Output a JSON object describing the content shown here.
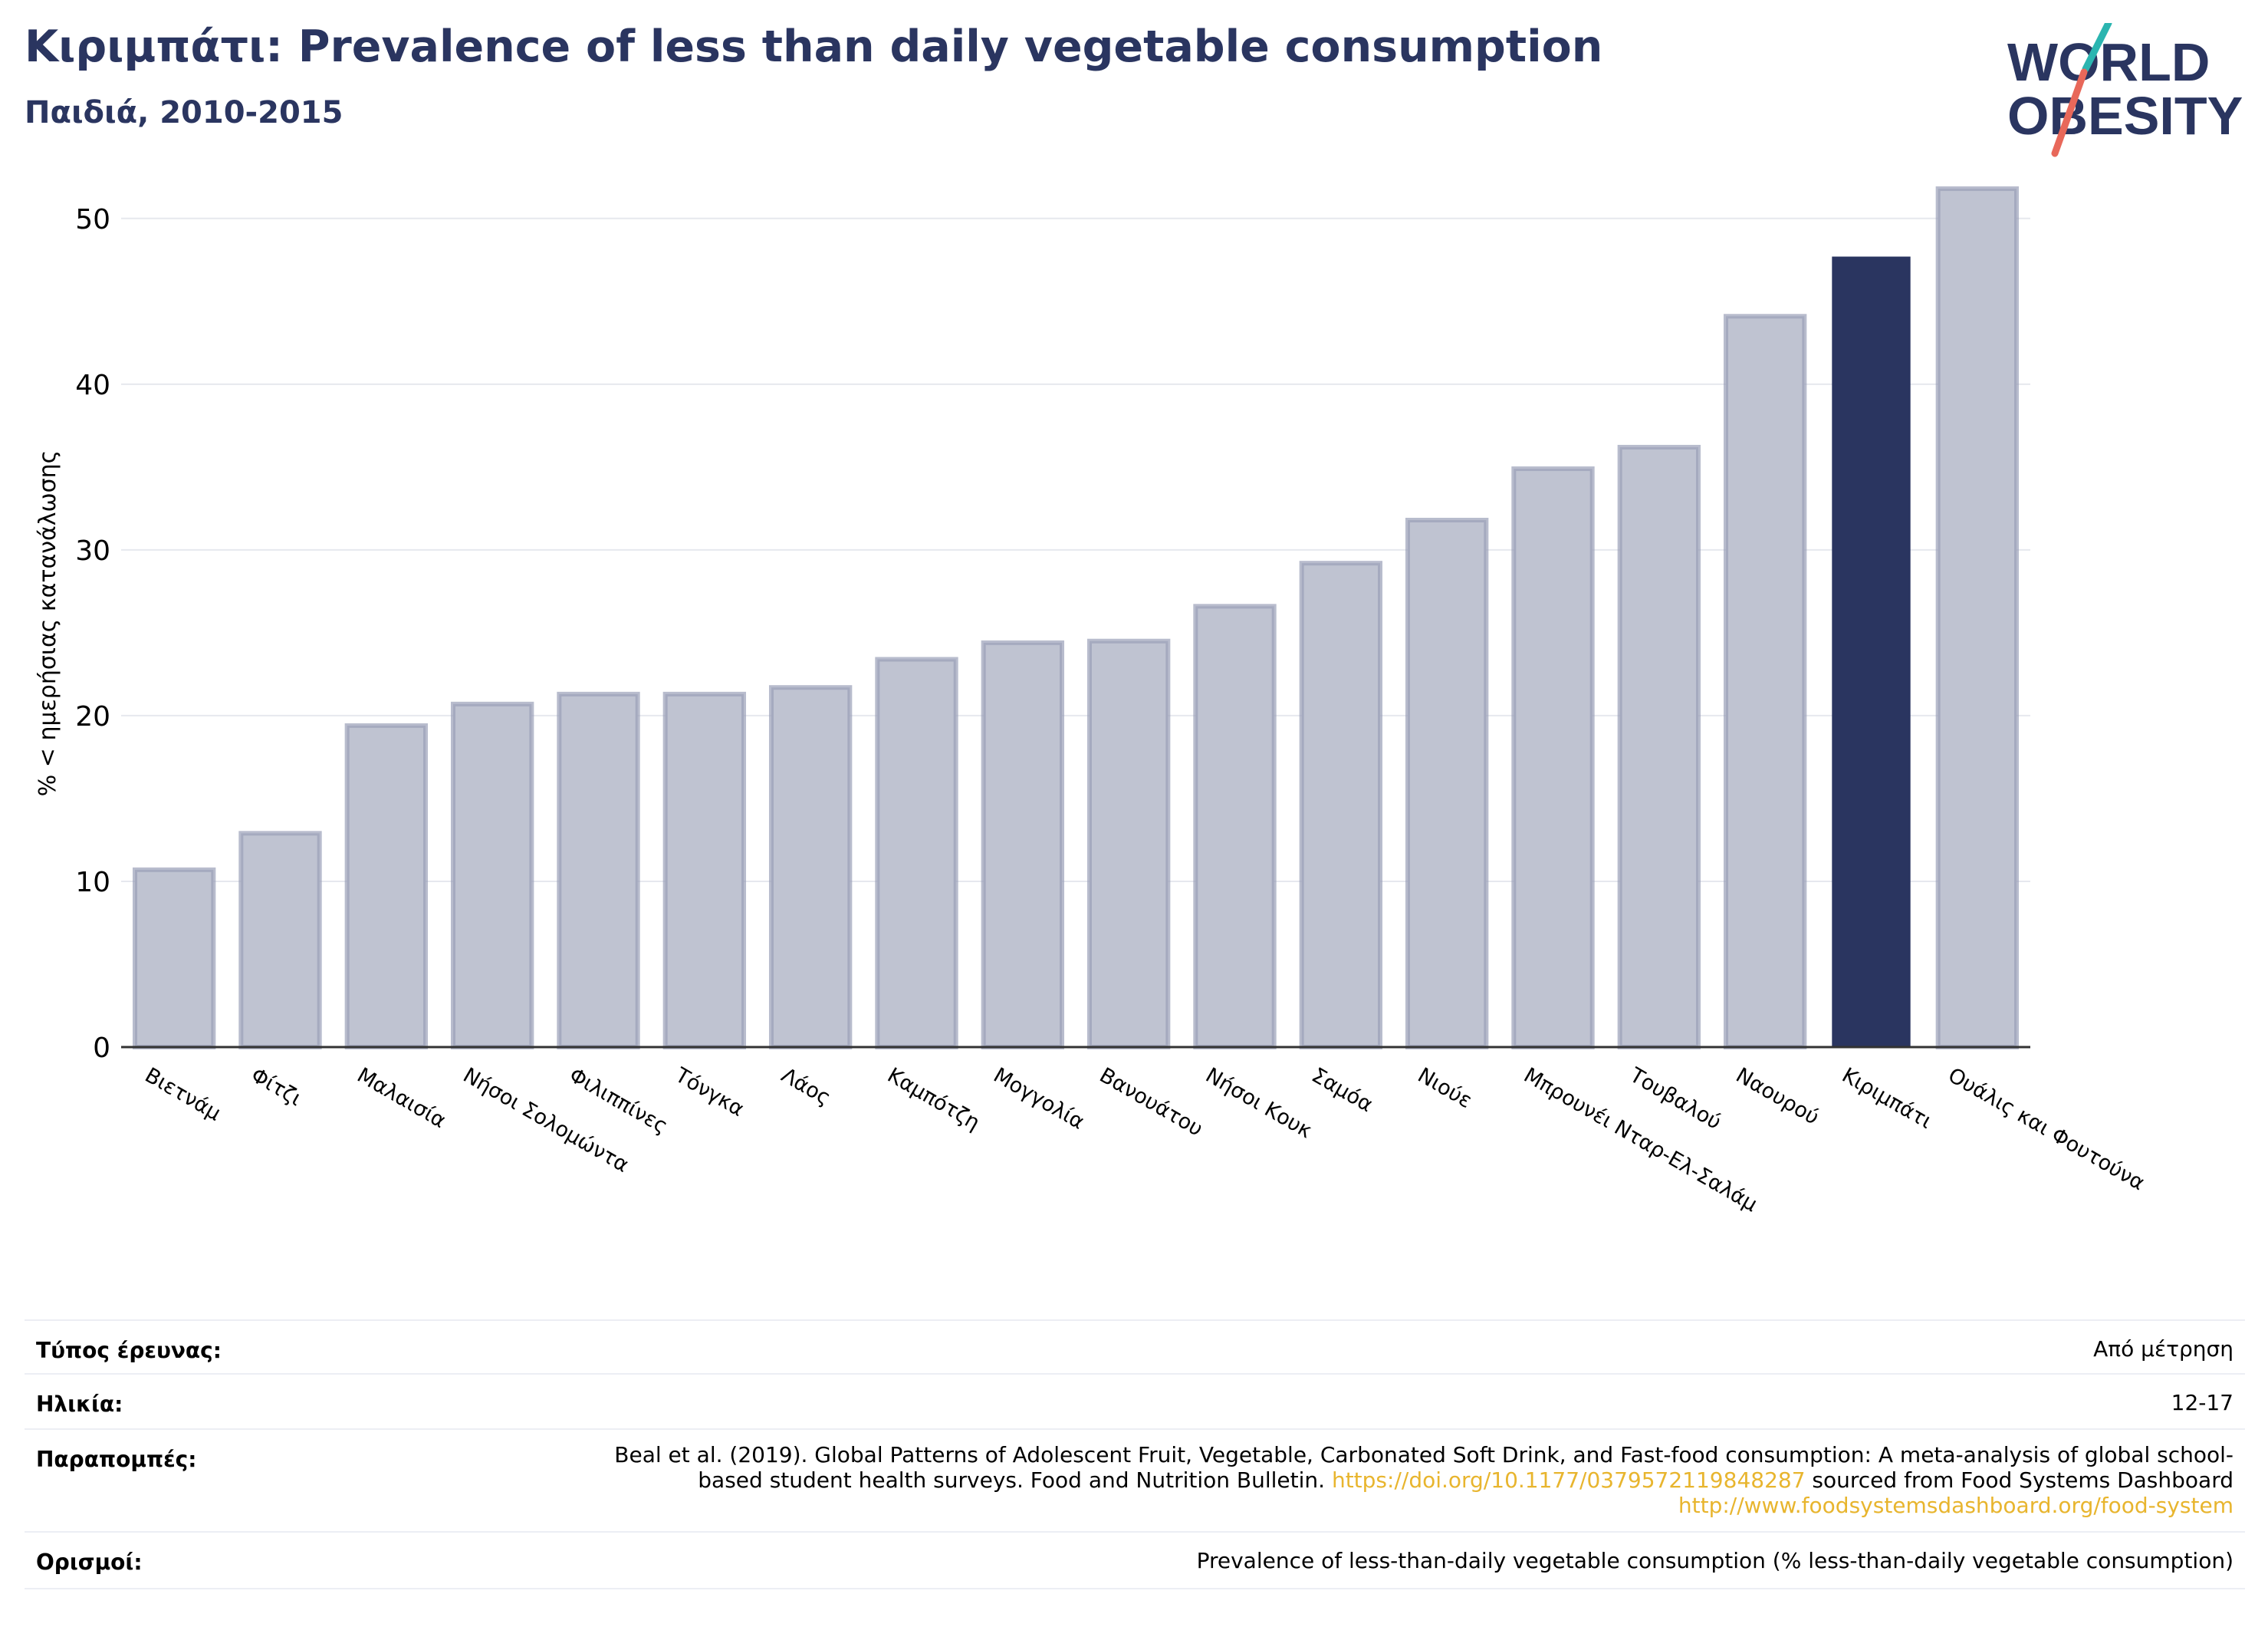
{
  "header": {
    "title": "Κιριμπάτι: Prevalence of less than daily vegetable consumption",
    "subtitle": "Παιδιά, 2010-2015"
  },
  "logo": {
    "line1": "WORLD",
    "line2": "OBESITY",
    "colors": {
      "text": "#2a3560",
      "slash_top": "#2bb5b0",
      "slash_bottom": "#e8685a"
    }
  },
  "colors": {
    "bar_default": "#bfc3d1",
    "bar_default_edge": "#9aa0b8",
    "bar_highlight": "#2a3560",
    "grid": "#e6e8ee",
    "axis": "#333333"
  },
  "chart_data": {
    "type": "bar",
    "ylabel": "% < ημερήσιας κατανάλωσης",
    "ylim": [
      0,
      53
    ],
    "yticks": [
      0,
      10,
      20,
      30,
      40,
      50
    ],
    "grid": true,
    "highlight": "Κιριμπάτι",
    "categories": [
      "Βιετνάμ",
      "Φίτζι",
      "Μαλαισία",
      "Νήσοι Σολομώντα",
      "Φιλιππίνες",
      "Τόνγκα",
      "Λάος",
      "Καμπότζη",
      "Μογγολία",
      "Βανουάτου",
      "Νήσοι Κουκ",
      "Σαμόα",
      "Νιούε",
      "Μπρουνέι Νταρ-Ελ-Σαλάμ",
      "Τουβαλού",
      "Ναουρού",
      "Κιριμπάτι",
      "Ουάλις και Φουτούνα"
    ],
    "values": [
      10.7,
      12.9,
      19.4,
      20.7,
      21.3,
      21.3,
      21.7,
      23.4,
      24.4,
      24.5,
      26.6,
      29.2,
      31.8,
      34.9,
      36.2,
      44.1,
      47.7,
      51.8
    ]
  },
  "info": {
    "survey_type_label": "Τύπος έρευνας:",
    "survey_type_value": "Από μέτρηση",
    "age_label": "Ηλικία:",
    "age_value": "12-17",
    "references_label": "Παραπομπές:",
    "references_text": "Beal et al. (2019). Global Patterns of Adolescent Fruit, Vegetable, Carbonated Soft Drink, and Fast-food consumption: A meta-analysis of global school-based student health surveys. Food and Nutrition Bulletin.",
    "references_link1": "https://doi.org/10.1177/0379572119848287",
    "references_mid": "sourced from Food Systems Dashboard",
    "references_link2": "http://www.foodsystemsdashboard.org/food-system",
    "definitions_label": "Ορισμοί:",
    "definitions_value": "Prevalence of less-than-daily vegetable consumption (% less-than-daily vegetable consumption)"
  }
}
